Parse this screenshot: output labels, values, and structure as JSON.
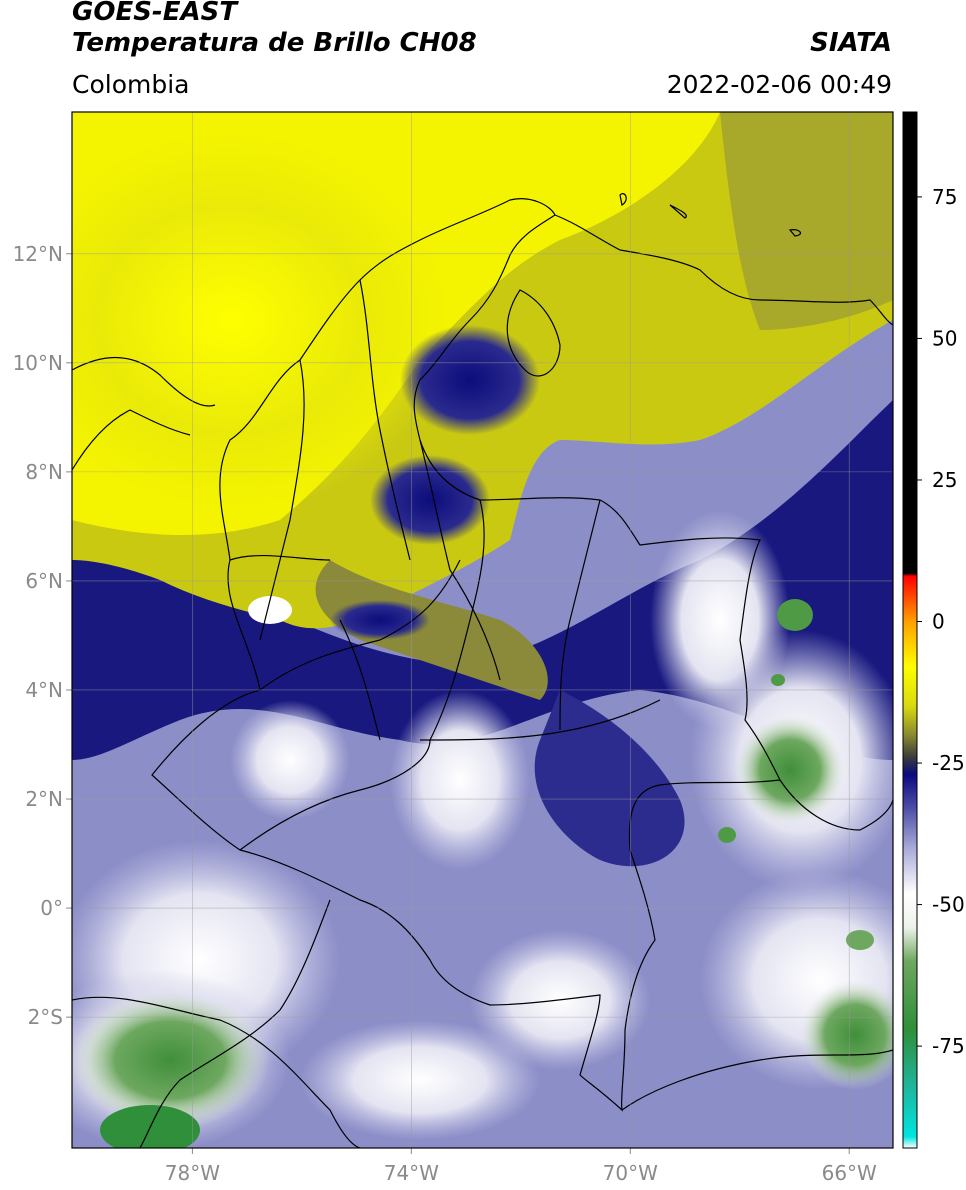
{
  "header": {
    "satellite": "GOES-EAST",
    "product": "Temperatura de Brillo CH08",
    "region": "Colombia",
    "brand": "SIATA",
    "timestamp": "2022-02-06 00:49"
  },
  "map": {
    "lon_range": [
      -80.2,
      -65.2
    ],
    "lat_range": [
      -4.4,
      14.6
    ],
    "lat_ticks": [
      {
        "value": 12,
        "label": "12°N"
      },
      {
        "value": 10,
        "label": "10°N"
      },
      {
        "value": 8,
        "label": "8°N"
      },
      {
        "value": 6,
        "label": "6°N"
      },
      {
        "value": 4,
        "label": "4°N"
      },
      {
        "value": 2,
        "label": "2°N"
      },
      {
        "value": 0,
        "label": "0°"
      },
      {
        "value": -2,
        "label": "2°S"
      }
    ],
    "lon_ticks": [
      {
        "value": -78,
        "label": "78°W"
      },
      {
        "value": -74,
        "label": "74°W"
      },
      {
        "value": -70,
        "label": "70°W"
      },
      {
        "value": -66,
        "label": "66°W"
      }
    ],
    "grid": true
  },
  "colorbar": {
    "range": [
      -93,
      90
    ],
    "ticks": [
      {
        "value": 75,
        "label": "75"
      },
      {
        "value": 50,
        "label": "50"
      },
      {
        "value": 25,
        "label": "25"
      },
      {
        "value": 0,
        "label": "0"
      },
      {
        "value": -25,
        "label": "-25"
      },
      {
        "value": -50,
        "label": "-50"
      },
      {
        "value": -75,
        "label": "-75"
      }
    ],
    "stops": [
      {
        "value": -93,
        "color": "#ffffff"
      },
      {
        "value": -91,
        "color": "#00e5e0"
      },
      {
        "value": -82,
        "color": "#20b49a"
      },
      {
        "value": -72,
        "color": "#2f8f3a"
      },
      {
        "value": -60,
        "color": "#6ea860"
      },
      {
        "value": -54,
        "color": "#eef3ea"
      },
      {
        "value": -48,
        "color": "#ffffff"
      },
      {
        "value": -40,
        "color": "#a8aad8"
      },
      {
        "value": -33,
        "color": "#4d4fa8"
      },
      {
        "value": -27,
        "color": "#0a0a80"
      },
      {
        "value": -24,
        "color": "#3b3b3b"
      },
      {
        "value": -20,
        "color": "#8a8a30"
      },
      {
        "value": -15,
        "color": "#d8d810"
      },
      {
        "value": -8,
        "color": "#ffff00"
      },
      {
        "value": 0,
        "color": "#ffa000"
      },
      {
        "value": 8,
        "color": "#ff0000"
      },
      {
        "value": 8.5,
        "color": "#000000"
      },
      {
        "value": 90,
        "color": "#000000"
      }
    ]
  },
  "colors": {
    "dry_yellow": "#ffff00",
    "olive": "#b8b820",
    "deep_blue": "#14147e",
    "lavender": "#8c8ec8",
    "white_cloud": "#f4f4fa",
    "green_cloud": "#4f9a45",
    "boundary": "#000000",
    "grid": "#b0b0b0"
  }
}
